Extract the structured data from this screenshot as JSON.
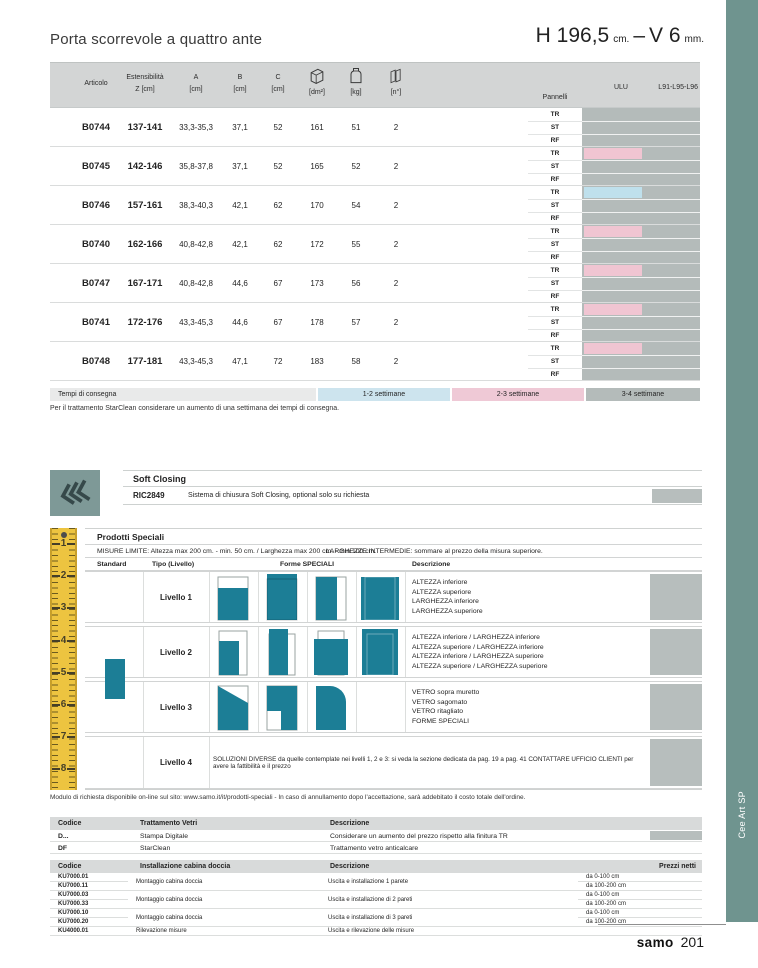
{
  "page": {
    "title": "Porta scorrevole a quattro ante",
    "dim_h": "H 196,5",
    "dim_h_unit": "cm.",
    "dim_sep": "–",
    "dim_v": "V 6",
    "dim_v_unit": "mm.",
    "footer_brand": "samo",
    "footer_page": "201",
    "side_tab": "Cee Art SP"
  },
  "colors": {
    "teal": "#1c7e96",
    "strip": "#6f948f",
    "bar_pink": "#f0c5d2",
    "bar_blue": "#bfe0ec",
    "band_gray": "#b4bbba",
    "legend_blue": "#cde4ee",
    "legend_pink": "#efc9d6",
    "legend_gray": "#b4bbba",
    "header_gray": "#d3d5d5",
    "accent_gray": "#b7bebd",
    "ruler_yellow": "#edc440"
  },
  "main_table": {
    "col_articolo": "Articolo",
    "col_est_l1": "Estensibilità",
    "col_est_l2": "Z [cm]",
    "col_a": "A",
    "col_b": "B",
    "col_c": "C",
    "sub_cm": "[cm]",
    "col_dm2": "[dm²]",
    "col_kg": "[kg]",
    "col_n": "[n°]",
    "col_pannelli": "Pannelli",
    "col_ulu": "ULU",
    "col_l": "L91-L95-L96",
    "panel_labels": [
      "TR",
      "ST",
      "RF"
    ],
    "rows": [
      {
        "articolo": "B0744",
        "z": "137-141",
        "a": "33,3-35,3",
        "b": "37,1",
        "c": "52",
        "dm2": "161",
        "kg": "51",
        "n": "2",
        "bars": {
          "TR": null,
          "ST": null,
          "RF": null
        }
      },
      {
        "articolo": "B0745",
        "z": "142-146",
        "a": "35,8-37,8",
        "b": "37,1",
        "c": "52",
        "dm2": "165",
        "kg": "52",
        "n": "2",
        "bars": {
          "TR": "pink",
          "ST": null,
          "RF": null
        }
      },
      {
        "articolo": "B0746",
        "z": "157-161",
        "a": "38,3-40,3",
        "b": "42,1",
        "c": "62",
        "dm2": "170",
        "kg": "54",
        "n": "2",
        "bars": {
          "TR": "blue",
          "ST": null,
          "RF": null
        }
      },
      {
        "articolo": "B0740",
        "z": "162-166",
        "a": "40,8-42,8",
        "b": "42,1",
        "c": "62",
        "dm2": "172",
        "kg": "55",
        "n": "2",
        "bars": {
          "TR": "pink",
          "ST": null,
          "RF": null
        }
      },
      {
        "articolo": "B0747",
        "z": "167-171",
        "a": "40,8-42,8",
        "b": "44,6",
        "c": "67",
        "dm2": "173",
        "kg": "56",
        "n": "2",
        "bars": {
          "TR": "pink",
          "ST": null,
          "RF": null
        }
      },
      {
        "articolo": "B0741",
        "z": "172-176",
        "a": "43,3-45,3",
        "b": "44,6",
        "c": "67",
        "dm2": "178",
        "kg": "57",
        "n": "2",
        "bars": {
          "TR": "pink",
          "ST": null,
          "RF": null
        }
      },
      {
        "articolo": "B0748",
        "z": "177-181",
        "a": "43,3-45,3",
        "b": "47,1",
        "c": "72",
        "dm2": "183",
        "kg": "58",
        "n": "2",
        "bars": {
          "TR": "pink",
          "ST": null,
          "RF": null
        }
      }
    ]
  },
  "legend": {
    "label": "Tempi di consegna",
    "items": [
      {
        "label": "1-2 settimane",
        "color": "#cde4ee"
      },
      {
        "label": "2-3 settimane",
        "color": "#efc9d6"
      },
      {
        "label": "3-4 settimane",
        "color": "#b4bbba"
      }
    ],
    "note": "Per il trattamento StarClean considerare un aumento di una settimana dei tempi di consegna."
  },
  "soft_closing": {
    "title": "Soft Closing",
    "code": "RIC2849",
    "description": "Sistema di chiusura Soft Closing, optional solo su richiesta"
  },
  "prodotti_speciali": {
    "title": "Prodotti Speciali",
    "misure": "MISURE LIMITE: Altezza max 200 cm. - min. 50 cm. / Larghezza max 200 cm. - min 100 cm.",
    "larghezze": "LARGHEZZE INTERMEDIE: sommare al prezzo della misura superiore.",
    "col_standard": "Standard",
    "col_tipo": "Tipo (Livello)",
    "col_forme": "Forme SPECIALI",
    "col_descrizione": "Descrizione",
    "ruler_numbers": [
      "1",
      "2",
      "3",
      "4",
      "5",
      "6",
      "7",
      "8"
    ],
    "rows": [
      {
        "livello": "Livello 1",
        "descrizione": [
          "ALTEZZA inferiore",
          "ALTEZZA superiore",
          "LARGHEZZA inferiore",
          "LARGHEZZA superiore"
        ]
      },
      {
        "livello": "Livello 2",
        "descrizione": [
          "ALTEZZA inferiore / LARGHEZZA inferiore",
          "ALTEZZA superiore / LARGHEZZA inferiore",
          "ALTEZZA inferiore / LARGHEZZA superiore",
          "ALTEZZA superiore / LARGHEZZA superiore"
        ]
      },
      {
        "livello": "Livello 3",
        "descrizione": [
          "VETRO sopra muretto",
          "VETRO sagomato",
          "VETRO ritagliato",
          "FORME SPECIALI"
        ]
      },
      {
        "livello": "Livello 4",
        "descrizione_full": "SOLUZIONI DIVERSE da quelle contemplate nei livelli 1, 2 e 3: si veda la sezione dedicata da pag. 19 a pag. 41 CONTATTARE UFFICIO CLIENTI per avere la fattibilità e il prezzo"
      }
    ],
    "note": "Modulo di richiesta disponibile on-line sul sito: www.samo.it/it/prodotti-speciali - In caso di annullamento dopo l'accettazione, sarà addebitato il costo totale dell'ordine."
  },
  "trattamento_table": {
    "col_codice": "Codice",
    "col_trattamento": "Trattamento Vetri",
    "col_descrizione": "Descrizione",
    "rows": [
      {
        "codice": "D...",
        "trattamento": "Stampa Digitale",
        "descrizione": "Considerare un aumento del prezzo rispetto alla finitura TR",
        "gray_box": true
      },
      {
        "codice": "DF",
        "trattamento": "StarClean",
        "descrizione": "Trattamento vetro anticalcare",
        "gray_box": false
      }
    ]
  },
  "installazione_table": {
    "col_codice": "Codice",
    "col_installazione": "Installazione cabina doccia",
    "col_descrizione": "Descrizione",
    "col_prezzi": "Prezzi netti",
    "groups": [
      {
        "codici": [
          "KU7000.01",
          "KU7000.11"
        ],
        "installazione": "Montaggio cabina doccia",
        "descrizione": "Uscita e installazione 1 parete",
        "ranges": [
          "da 0-100 cm",
          "da 100-200 cm"
        ]
      },
      {
        "codici": [
          "KU7000.03",
          "KU7000.33"
        ],
        "installazione": "Montaggio cabina doccia",
        "descrizione": "Uscita e installazione di 2 pareti",
        "ranges": [
          "da 0-100 cm",
          "da 100-200 cm"
        ]
      },
      {
        "codici": [
          "KU7000.10",
          "KU7000.20"
        ],
        "installazione": "Montaggio cabina doccia",
        "descrizione": "Uscita e installazione di 3 pareti",
        "ranges": [
          "da 0-100 cm",
          "da 100-200 cm"
        ]
      },
      {
        "codici": [
          "KU4000.01"
        ],
        "installazione": "Rilevazione misure",
        "descrizione": "Uscita e rilevazione delle misure",
        "ranges": []
      }
    ]
  }
}
